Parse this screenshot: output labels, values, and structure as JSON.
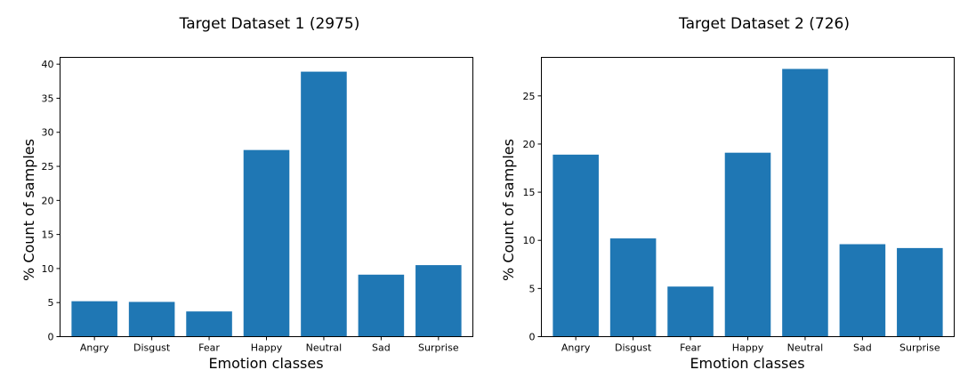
{
  "colors": {
    "bar": "#1f77b4",
    "axis": "#000000",
    "background": "#ffffff"
  },
  "chart_data": [
    {
      "type": "bar",
      "title": "Target Dataset 1 (2975)",
      "xlabel": "Emotion classes",
      "ylabel": "% Count of samples",
      "categories": [
        "Angry",
        "Disgust",
        "Fear",
        "Happy",
        "Neutral",
        "Sad",
        "Surprise"
      ],
      "values": [
        5.2,
        5.1,
        3.7,
        27.4,
        38.9,
        9.1,
        10.5
      ],
      "ylim": [
        0,
        41
      ],
      "yticks": [
        0,
        5,
        10,
        15,
        20,
        25,
        30,
        35,
        40
      ],
      "grid": false
    },
    {
      "type": "bar",
      "title": "Target Dataset 2 (726)",
      "xlabel": "Emotion classes",
      "ylabel": "% Count of samples",
      "categories": [
        "Angry",
        "Disgust",
        "Fear",
        "Happy",
        "Neutral",
        "Sad",
        "Surprise"
      ],
      "values": [
        18.9,
        10.2,
        5.2,
        19.1,
        27.8,
        9.6,
        9.2
      ],
      "ylim": [
        0,
        29
      ],
      "yticks": [
        0,
        5,
        10,
        15,
        20,
        25
      ],
      "grid": false
    }
  ]
}
